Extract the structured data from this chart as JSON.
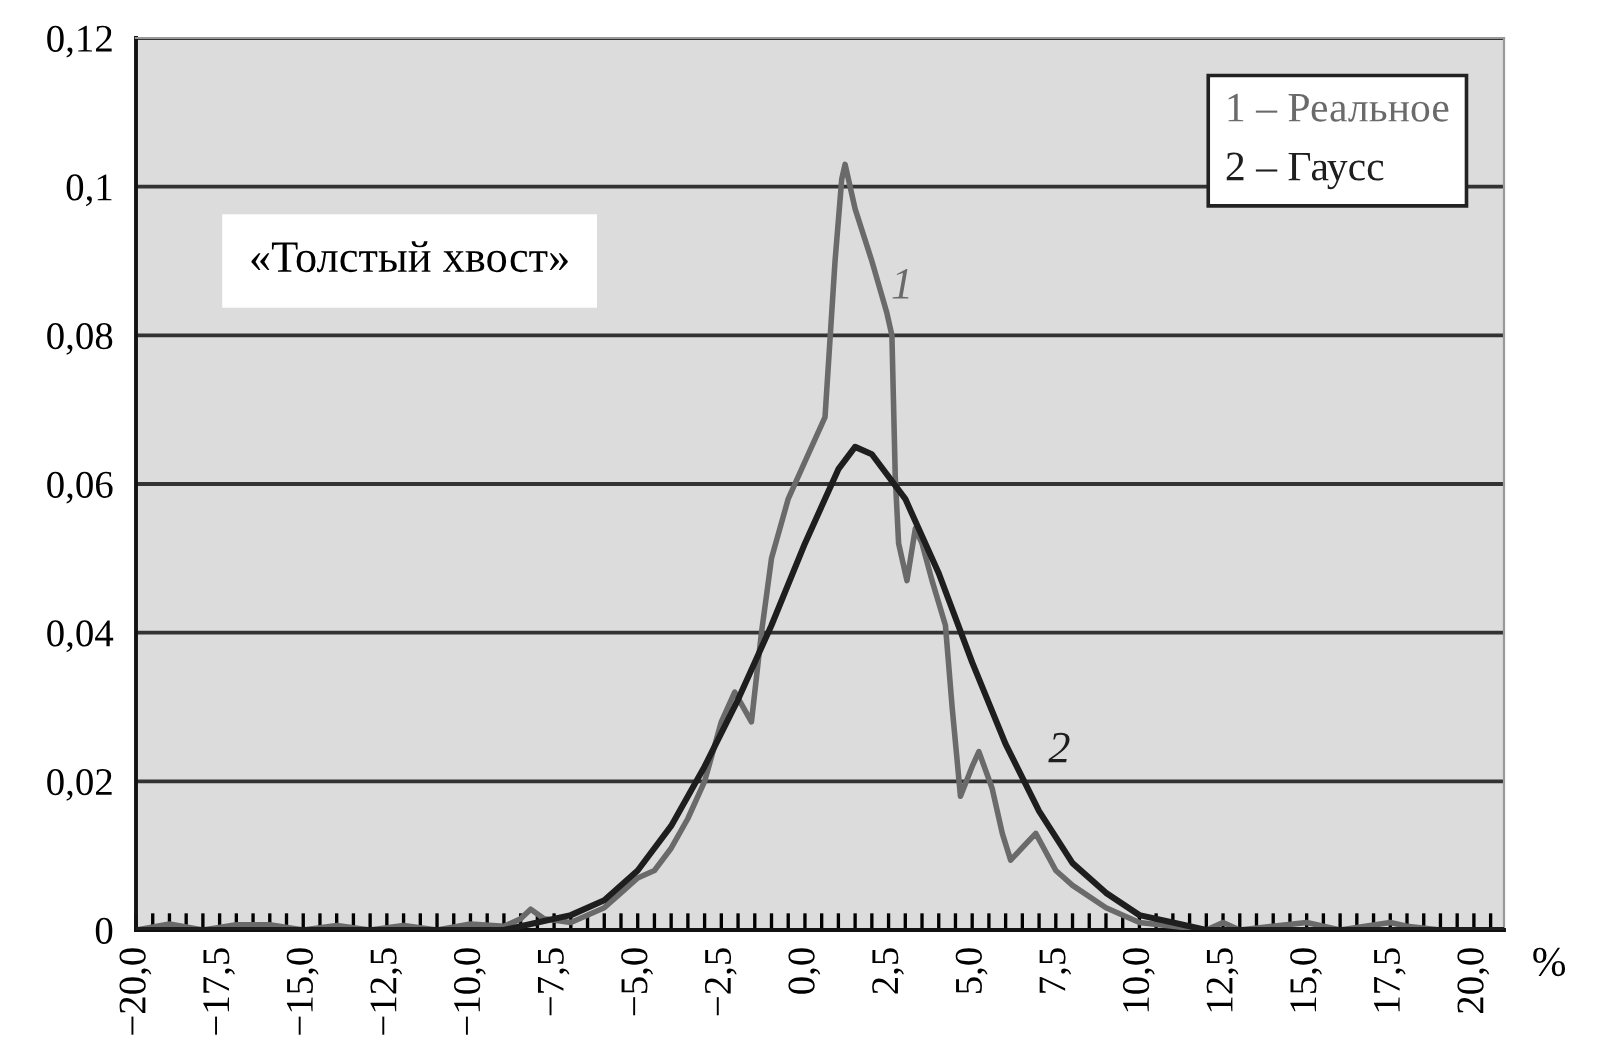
{
  "chart_data": {
    "type": "line",
    "xlabel": "%",
    "xlim": [
      -20,
      20.9
    ],
    "ylim": [
      0,
      0.12
    ],
    "yticks": [
      {
        "value": 0,
        "label": "0"
      },
      {
        "value": 0.02,
        "label": "0,02"
      },
      {
        "value": 0.04,
        "label": "0,04"
      },
      {
        "value": 0.06,
        "label": "0,06"
      },
      {
        "value": 0.08,
        "label": "0,08"
      },
      {
        "value": 0.1,
        "label": "0,1"
      },
      {
        "value": 0.12,
        "label": "0,12"
      }
    ],
    "xticks": [
      {
        "value": -20,
        "label": "−20,0"
      },
      {
        "value": -19.5,
        "label": null
      },
      {
        "value": -19,
        "label": null
      },
      {
        "value": -18.5,
        "label": null
      },
      {
        "value": -18,
        "label": null
      },
      {
        "value": -17.5,
        "label": "−17,5"
      },
      {
        "value": -17,
        "label": null
      },
      {
        "value": -16.5,
        "label": null
      },
      {
        "value": -16,
        "label": null
      },
      {
        "value": -15.5,
        "label": null
      },
      {
        "value": -15,
        "label": "−15,0"
      },
      {
        "value": -14.5,
        "label": null
      },
      {
        "value": -14,
        "label": null
      },
      {
        "value": -13.5,
        "label": null
      },
      {
        "value": -13,
        "label": null
      },
      {
        "value": -12.5,
        "label": "−12,5"
      },
      {
        "value": -12,
        "label": null
      },
      {
        "value": -11.5,
        "label": null
      },
      {
        "value": -11,
        "label": null
      },
      {
        "value": -10.5,
        "label": null
      },
      {
        "value": -10,
        "label": "−10,0"
      },
      {
        "value": -9.5,
        "label": null
      },
      {
        "value": -9,
        "label": null
      },
      {
        "value": -8.5,
        "label": null
      },
      {
        "value": -8,
        "label": null
      },
      {
        "value": -7.5,
        "label": "−7,5"
      },
      {
        "value": -7,
        "label": null
      },
      {
        "value": -6.5,
        "label": null
      },
      {
        "value": -6,
        "label": null
      },
      {
        "value": -5.5,
        "label": null
      },
      {
        "value": -5,
        "label": "−5,0"
      },
      {
        "value": -4.5,
        "label": null
      },
      {
        "value": -4,
        "label": null
      },
      {
        "value": -3.5,
        "label": null
      },
      {
        "value": -3,
        "label": null
      },
      {
        "value": -2.5,
        "label": "−2,5"
      },
      {
        "value": -2,
        "label": null
      },
      {
        "value": -1.5,
        "label": null
      },
      {
        "value": -1,
        "label": null
      },
      {
        "value": -0.5,
        "label": null
      },
      {
        "value": 0,
        "label": "0,0"
      },
      {
        "value": 0.5,
        "label": null
      },
      {
        "value": 1,
        "label": null
      },
      {
        "value": 1.5,
        "label": null
      },
      {
        "value": 2,
        "label": null
      },
      {
        "value": 2.5,
        "label": "2,5"
      },
      {
        "value": 3,
        "label": null
      },
      {
        "value": 3.5,
        "label": null
      },
      {
        "value": 4,
        "label": null
      },
      {
        "value": 4.5,
        "label": null
      },
      {
        "value": 5,
        "label": "5,0"
      },
      {
        "value": 5.5,
        "label": null
      },
      {
        "value": 6,
        "label": null
      },
      {
        "value": 6.5,
        "label": null
      },
      {
        "value": 7,
        "label": null
      },
      {
        "value": 7.5,
        "label": "7,5"
      },
      {
        "value": 8,
        "label": null
      },
      {
        "value": 8.5,
        "label": null
      },
      {
        "value": 9,
        "label": null
      },
      {
        "value": 9.5,
        "label": null
      },
      {
        "value": 10,
        "label": "10,0"
      },
      {
        "value": 10.5,
        "label": null
      },
      {
        "value": 11,
        "label": null
      },
      {
        "value": 11.5,
        "label": null
      },
      {
        "value": 12,
        "label": null
      },
      {
        "value": 12.5,
        "label": "12,5"
      },
      {
        "value": 13,
        "label": null
      },
      {
        "value": 13.5,
        "label": null
      },
      {
        "value": 14,
        "label": null
      },
      {
        "value": 14.5,
        "label": null
      },
      {
        "value": 15,
        "label": "15,0"
      },
      {
        "value": 15.5,
        "label": null
      },
      {
        "value": 16,
        "label": null
      },
      {
        "value": 16.5,
        "label": null
      },
      {
        "value": 17,
        "label": null
      },
      {
        "value": 17.5,
        "label": "17,5"
      },
      {
        "value": 18,
        "label": null
      },
      {
        "value": 18.5,
        "label": null
      },
      {
        "value": 19,
        "label": null
      },
      {
        "value": 19.5,
        "label": null
      },
      {
        "value": 20,
        "label": "20,0"
      },
      {
        "value": 20.5,
        "label": null
      }
    ],
    "grid": "y",
    "legend": "top right",
    "series": [
      {
        "name": "1 – Реальное",
        "color": "#6a6a6a",
        "x": [
          -20,
          -19,
          -18,
          -17,
          -16,
          -15,
          -14,
          -13,
          -12,
          -11,
          -10,
          -9,
          -8.5,
          -8.2,
          -7.8,
          -7,
          -6,
          -5.5,
          -5,
          -4.5,
          -4,
          -3.5,
          -3,
          -2.5,
          -2.1,
          -1.6,
          -1.3,
          -1,
          -0.5,
          0,
          0.6,
          0.9,
          1.1,
          1.2,
          1.5,
          2,
          2.45,
          2.6,
          2.7,
          2.8,
          3.05,
          3.3,
          3.5,
          3.8,
          4.2,
          4.4,
          4.65,
          5,
          5.2,
          5.6,
          5.9,
          6.15,
          6.9,
          7.5,
          8,
          9,
          10,
          11,
          12,
          12.5,
          13,
          15,
          16,
          17.5,
          18,
          19,
          20.5
        ],
        "values": [
          0,
          0.0008,
          0,
          0.0007,
          0.0007,
          0,
          0.0006,
          0,
          0.0006,
          0,
          0.0008,
          0.0005,
          0.0015,
          0.0028,
          0.0015,
          0.001,
          0.003,
          0.005,
          0.007,
          0.008,
          0.011,
          0.015,
          0.02,
          0.028,
          0.032,
          0.028,
          0.04,
          0.05,
          0.058,
          0.063,
          0.069,
          0.09,
          0.101,
          0.103,
          0.097,
          0.09,
          0.083,
          0.08,
          0.061,
          0.052,
          0.047,
          0.054,
          0.052,
          0.047,
          0.041,
          0.03,
          0.018,
          0.022,
          0.024,
          0.019,
          0.013,
          0.0094,
          0.013,
          0.008,
          0.006,
          0.003,
          0.001,
          0.0005,
          0,
          0.001,
          0,
          0.001,
          0,
          0.001,
          0.0005,
          0,
          0
        ]
      },
      {
        "name": "2 – Гаусс",
        "color": "#1e1e1e",
        "x": [
          -20,
          -9,
          -8,
          -7,
          -6,
          -5,
          -4,
          -3,
          -2,
          -1,
          0,
          0.5,
          1,
          1.5,
          2,
          3,
          4,
          5,
          6,
          7,
          8,
          9,
          10,
          11,
          12,
          20.9
        ],
        "values": [
          0,
          0,
          0.001,
          0.002,
          0.004,
          0.008,
          0.014,
          0.022,
          0.031,
          0.041,
          0.052,
          0.057,
          0.062,
          0.065,
          0.064,
          0.058,
          0.048,
          0.036,
          0.025,
          0.016,
          0.009,
          0.005,
          0.002,
          0.001,
          0,
          0
        ]
      }
    ],
    "annotations": [
      "1",
      "2",
      "«Толстый хвост»"
    ]
  }
}
